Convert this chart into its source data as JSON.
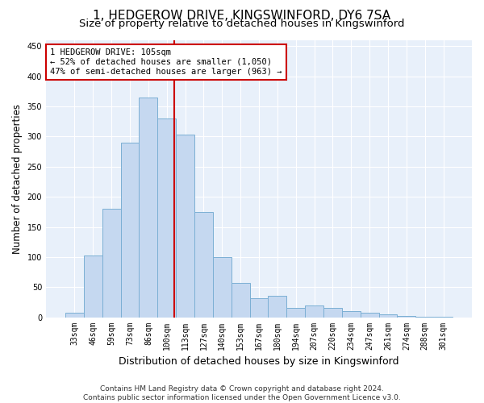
{
  "title": "1, HEDGEROW DRIVE, KINGSWINFORD, DY6 7SA",
  "subtitle": "Size of property relative to detached houses in Kingswinford",
  "xlabel": "Distribution of detached houses by size in Kingswinford",
  "ylabel": "Number of detached properties",
  "categories": [
    "33sqm",
    "46sqm",
    "59sqm",
    "73sqm",
    "86sqm",
    "100sqm",
    "113sqm",
    "127sqm",
    "140sqm",
    "153sqm",
    "167sqm",
    "180sqm",
    "194sqm",
    "207sqm",
    "220sqm",
    "234sqm",
    "247sqm",
    "261sqm",
    "274sqm",
    "288sqm",
    "301sqm"
  ],
  "values": [
    8,
    102,
    180,
    290,
    365,
    330,
    303,
    175,
    100,
    57,
    32,
    35,
    15,
    20,
    15,
    10,
    8,
    5,
    2,
    1,
    1
  ],
  "bar_color": "#c5d8f0",
  "bar_edgecolor": "#7bafd4",
  "bar_linewidth": 0.7,
  "annotation_text": "1 HEDGEROW DRIVE: 105sqm\n← 52% of detached houses are smaller (1,050)\n47% of semi-detached houses are larger (963) →",
  "annotation_box_color": "#ffffff",
  "annotation_box_edgecolor": "#cc0000",
  "redline_color": "#cc0000",
  "ylim": [
    0,
    460
  ],
  "background_color": "#e8f0fa",
  "plot_background": "#e8f0fa",
  "footer": "Contains HM Land Registry data © Crown copyright and database right 2024.\nContains public sector information licensed under the Open Government Licence v3.0.",
  "title_fontsize": 11,
  "subtitle_fontsize": 9.5,
  "xlabel_fontsize": 9,
  "ylabel_fontsize": 8.5,
  "tick_fontsize": 7,
  "annotation_fontsize": 7.5,
  "footer_fontsize": 6.5
}
